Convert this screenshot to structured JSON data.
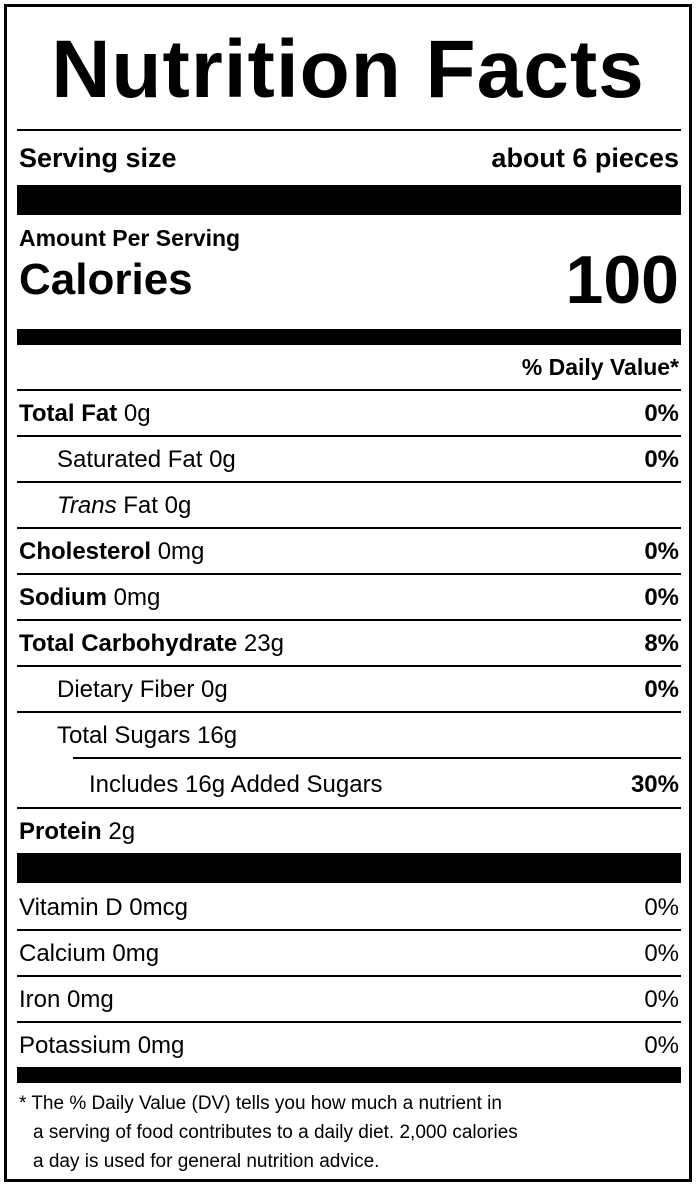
{
  "title": "Nutrition Facts",
  "serving": {
    "label": "Serving size",
    "value": "about 6 pieces"
  },
  "amount_per_serving": "Amount Per Serving",
  "calories": {
    "label": "Calories",
    "value": "100"
  },
  "daily_value_header": "% Daily Value*",
  "nutrients": {
    "total_fat": {
      "label": "Total Fat",
      "amount": "0g",
      "dv": "0%"
    },
    "saturated_fat": {
      "label": "Saturated Fat 0g",
      "dv": "0%"
    },
    "trans_fat": {
      "label_italic": "Trans",
      "label": " Fat 0g"
    },
    "cholesterol": {
      "label": "Cholesterol",
      "amount": "0mg",
      "dv": "0%"
    },
    "sodium": {
      "label": "Sodium",
      "amount": "0mg",
      "dv": "0%"
    },
    "total_carb": {
      "label": "Total Carbohydrate",
      "amount": "23g",
      "dv": "8%"
    },
    "dietary_fiber": {
      "label": "Dietary Fiber 0g",
      "dv": "0%"
    },
    "total_sugars": {
      "label": "Total Sugars 16g"
    },
    "added_sugars": {
      "label": "Includes 16g Added Sugars",
      "dv": "30%"
    },
    "protein": {
      "label": "Protein",
      "amount": "2g"
    }
  },
  "vitamins": [
    {
      "label": "Vitamin D 0mcg",
      "dv": "0%"
    },
    {
      "label": "Calcium 0mg",
      "dv": "0%"
    },
    {
      "label": "Iron 0mg",
      "dv": "0%"
    },
    {
      "label": "Potassium 0mg",
      "dv": "0%"
    }
  ],
  "footnote": [
    "* The % Daily Value (DV) tells you how much a nutrient in",
    "a serving of food contributes to a daily diet. 2,000 calories",
    "a day is used for general nutrition advice."
  ]
}
